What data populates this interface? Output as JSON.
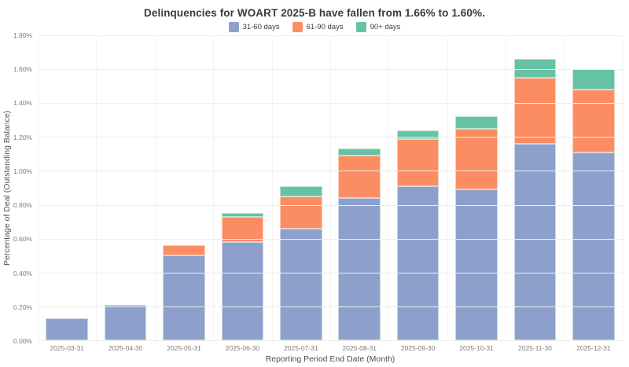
{
  "title": "Delinquencies for WOART 2025-B have fallen from 1.66% to 1.60%.",
  "colors": {
    "background": "#ffffff",
    "grid": "#ededed",
    "title_text": "#3b3b3b",
    "tick_text": "#7d7d7d",
    "series_31_60": "#8da0cb",
    "series_61_90": "#fc8d62",
    "series_90_plus": "#66c2a5"
  },
  "chart_data": {
    "type": "bar",
    "stacked": true,
    "title": "Delinquencies for WOART 2025-B have fallen from 1.66% to 1.60%.",
    "xlabel": "Reporting Period End Date (Month)",
    "ylabel": "Percentage of Deal (Outstanding Balance)",
    "ylim": [
      0,
      1.8
    ],
    "grid": true,
    "legend_position": "top-center",
    "yticks": [
      {
        "value": 0.0,
        "label": "0.00%"
      },
      {
        "value": 0.2,
        "label": "0.20%"
      },
      {
        "value": 0.4,
        "label": "0.40%"
      },
      {
        "value": 0.6,
        "label": "0.60%"
      },
      {
        "value": 0.8,
        "label": "0.80%"
      },
      {
        "value": 1.0,
        "label": "1.00%"
      },
      {
        "value": 1.2,
        "label": "1.20%"
      },
      {
        "value": 1.4,
        "label": "1.40%"
      },
      {
        "value": 1.6,
        "label": "1.60%"
      },
      {
        "value": 1.8,
        "label": "1.80%"
      }
    ],
    "categories": [
      "2025-03-31",
      "2025-04-30",
      "2025-05-31",
      "2025-06-30",
      "2025-07-31",
      "2025-08-31",
      "2025-09-30",
      "2025-10-31",
      "2025-11-30",
      "2025-12-31"
    ],
    "series": [
      {
        "name": "31-60 days",
        "color": "#8da0cb",
        "values": [
          0.13,
          0.21,
          0.5,
          0.58,
          0.66,
          0.84,
          0.91,
          0.89,
          1.16,
          1.11
        ]
      },
      {
        "name": "61-90 days",
        "color": "#fc8d62",
        "values": [
          0.0,
          0.0,
          0.06,
          0.15,
          0.19,
          0.25,
          0.28,
          0.36,
          0.39,
          0.37
        ]
      },
      {
        "name": "90+ days",
        "color": "#66c2a5",
        "values": [
          0.0,
          0.0,
          0.0,
          0.02,
          0.06,
          0.04,
          0.05,
          0.07,
          0.11,
          0.12
        ]
      }
    ]
  }
}
